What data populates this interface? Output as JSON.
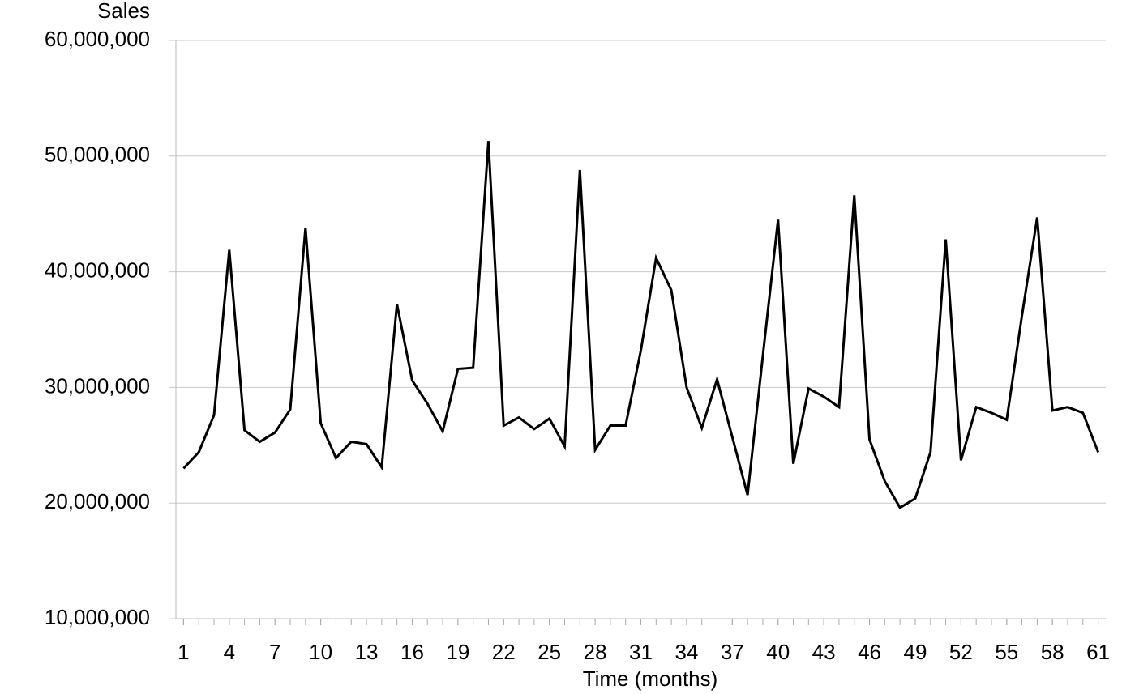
{
  "chart_data": {
    "type": "line",
    "y_label": "Sales",
    "x_label": "Time (months)",
    "color": "#000000",
    "grid": true,
    "x": [
      1,
      2,
      3,
      4,
      5,
      6,
      7,
      8,
      9,
      10,
      11,
      12,
      13,
      14,
      15,
      16,
      17,
      18,
      19,
      20,
      21,
      22,
      23,
      24,
      25,
      26,
      27,
      28,
      29,
      30,
      31,
      32,
      33,
      34,
      35,
      36,
      37,
      38,
      39,
      40,
      41,
      42,
      43,
      44,
      45,
      46,
      47,
      48,
      49,
      50,
      51,
      52,
      53,
      54,
      55,
      56,
      57,
      58,
      59,
      60,
      61
    ],
    "values": [
      23000000,
      24400000,
      27600000,
      41900000,
      26300000,
      25300000,
      26100000,
      28100000,
      43800000,
      26900000,
      23900000,
      25300000,
      25100000,
      23100000,
      37200000,
      30600000,
      28600000,
      26200000,
      31600000,
      31700000,
      51300000,
      26700000,
      27400000,
      26400000,
      27300000,
      24900000,
      48800000,
      24600000,
      26700000,
      26700000,
      33200000,
      41200000,
      38400000,
      30000000,
      26500000,
      30700000,
      25700000,
      20700000,
      32700000,
      44500000,
      23400000,
      29900000,
      29200000,
      28300000,
      46600000,
      25500000,
      21900000,
      19600000,
      20400000,
      24400000,
      42800000,
      23700000,
      28300000,
      27800000,
      27200000,
      36200000,
      44700000,
      28000000,
      28300000,
      27800000,
      24400000
    ],
    "xlim": [
      0.5,
      61.5
    ],
    "xticks": [
      1,
      4,
      7,
      10,
      13,
      16,
      19,
      22,
      25,
      28,
      31,
      34,
      37,
      40,
      43,
      46,
      49,
      52,
      55,
      58,
      61
    ],
    "ylim": [
      10000000,
      60000000
    ],
    "yticks": [
      {
        "value": 10000000,
        "label": "10,000,000"
      },
      {
        "value": 20000000,
        "label": "20,000,000"
      },
      {
        "value": 30000000,
        "label": "30,000,000"
      },
      {
        "value": 40000000,
        "label": "40,000,000"
      },
      {
        "value": 50000000,
        "label": "50,000,000"
      },
      {
        "value": 60000000,
        "label": "60,000,000"
      }
    ]
  }
}
